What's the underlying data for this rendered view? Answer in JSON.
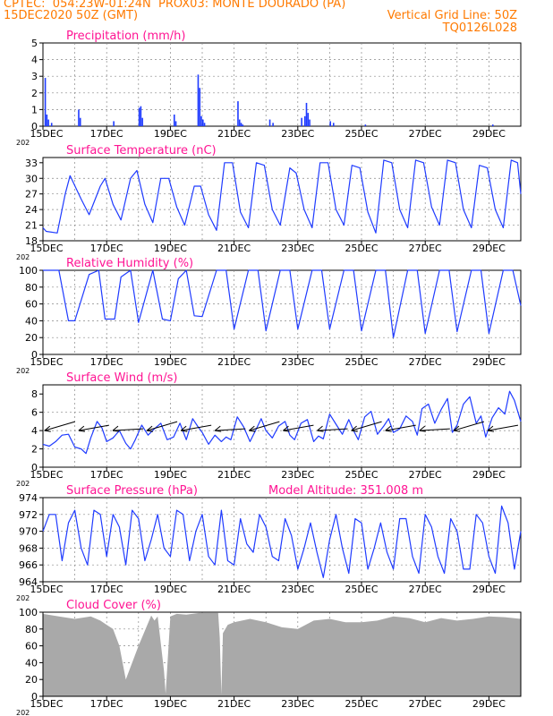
{
  "header": {
    "line1_left": "CPTEC:  054:23W-01:24N  PROX03: MONTE DOURADO (PA)",
    "line2_left": "15DEC2020 50Z (GMT)",
    "line2_right": "Vertical Grid Line: 50Z",
    "line3_right": "TQ0126L028"
  },
  "colors": {
    "header": "#ff7a00",
    "title": "#ff1493",
    "series": "#1f3bff",
    "bars": "#1f3bff",
    "cloud": "#a9a9a9",
    "arrows": "#000000"
  },
  "x_tick_labels": [
    "15DEC",
    "17DEC",
    "19DEC",
    "21DEC",
    "23DEC",
    "25DEC",
    "27DEC",
    "29DEC"
  ],
  "year_fragment": "202",
  "chart_data": [
    {
      "type": "bar",
      "title": "Precipitation (mm/h)",
      "ylim": [
        0,
        5
      ],
      "yticks": [
        "0",
        "1",
        "2",
        "3",
        "4",
        "5"
      ],
      "x_day_range": [
        0,
        15
      ],
      "events": [
        {
          "day": 0.05,
          "value": 2.9
        },
        {
          "day": 0.1,
          "value": 0.7
        },
        {
          "day": 0.15,
          "value": 0.4
        },
        {
          "day": 0.25,
          "value": 0.2
        },
        {
          "day": 1.1,
          "value": 1.0
        },
        {
          "day": 1.15,
          "value": 0.5
        },
        {
          "day": 2.2,
          "value": 0.3
        },
        {
          "day": 3.0,
          "value": 1.1
        },
        {
          "day": 3.05,
          "value": 1.2
        },
        {
          "day": 3.1,
          "value": 0.5
        },
        {
          "day": 4.1,
          "value": 0.7
        },
        {
          "day": 4.15,
          "value": 0.3
        },
        {
          "day": 4.85,
          "value": 3.1
        },
        {
          "day": 4.9,
          "value": 2.3
        },
        {
          "day": 4.95,
          "value": 0.6
        },
        {
          "day": 5.0,
          "value": 0.4
        },
        {
          "day": 5.05,
          "value": 0.2
        },
        {
          "day": 6.1,
          "value": 1.5
        },
        {
          "day": 6.15,
          "value": 0.4
        },
        {
          "day": 6.2,
          "value": 0.2
        },
        {
          "day": 6.25,
          "value": 0.1
        },
        {
          "day": 7.1,
          "value": 0.4
        },
        {
          "day": 7.2,
          "value": 0.2
        },
        {
          "day": 8.1,
          "value": 0.5
        },
        {
          "day": 8.2,
          "value": 0.6
        },
        {
          "day": 8.25,
          "value": 1.4
        },
        {
          "day": 8.3,
          "value": 0.8
        },
        {
          "day": 8.35,
          "value": 0.4
        },
        {
          "day": 9.0,
          "value": 0.3
        },
        {
          "day": 9.1,
          "value": 0.2
        },
        {
          "day": 10.1,
          "value": 0.1
        },
        {
          "day": 14.1,
          "value": 0.1
        }
      ]
    },
    {
      "type": "line",
      "title": "Surface Temperature (nC)",
      "ylim": [
        18,
        34
      ],
      "yticks": [
        "18",
        "21",
        "24",
        "27",
        "30",
        "33"
      ],
      "x_day_range": [
        0,
        15
      ],
      "x": [
        0,
        0.1,
        0.45,
        0.7,
        0.85,
        1.2,
        1.45,
        1.8,
        1.95,
        2.2,
        2.45,
        2.75,
        2.95,
        3.2,
        3.45,
        3.7,
        3.95,
        4.2,
        4.45,
        4.75,
        4.95,
        5.2,
        5.45,
        5.7,
        5.95,
        6.2,
        6.45,
        6.7,
        6.95,
        7.2,
        7.45,
        7.75,
        7.95,
        8.2,
        8.45,
        8.7,
        8.95,
        9.2,
        9.45,
        9.7,
        9.95,
        10.2,
        10.45,
        10.7,
        10.95,
        11.2,
        11.45,
        11.7,
        11.95,
        12.2,
        12.45,
        12.7,
        12.95,
        13.2,
        13.45,
        13.7,
        13.95,
        14.2,
        14.45,
        14.7,
        14.9,
        15.0
      ],
      "y": [
        20.5,
        19.8,
        19.5,
        27,
        30.5,
        26,
        23,
        28.5,
        30,
        25,
        22,
        30,
        31.5,
        25,
        21.5,
        30,
        30,
        24.5,
        21,
        28.5,
        28.5,
        23,
        20,
        33,
        33,
        23.5,
        20.5,
        33,
        32.5,
        24,
        21,
        32,
        31,
        24,
        20.5,
        33,
        33,
        24,
        21,
        32.5,
        32,
        23.5,
        19.5,
        33.5,
        33,
        24,
        20.5,
        33.5,
        33,
        24.5,
        21,
        33.5,
        33,
        24,
        20.5,
        32.5,
        32,
        24,
        20.5,
        33.5,
        33,
        27
      ]
    },
    {
      "type": "line",
      "title": "Relative Humidity (%)",
      "ylim": [
        0,
        100
      ],
      "yticks": [
        "0",
        "20",
        "40",
        "60",
        "80",
        "100"
      ],
      "x_day_range": [
        0,
        15
      ],
      "x": [
        0,
        0.05,
        0.5,
        0.8,
        1.0,
        1.45,
        1.75,
        1.95,
        2.25,
        2.45,
        2.75,
        3.0,
        3.45,
        3.75,
        4.0,
        4.25,
        4.5,
        4.75,
        5.0,
        5.45,
        5.75,
        6.0,
        6.45,
        6.75,
        7.0,
        7.45,
        7.75,
        8.0,
        8.45,
        8.75,
        9.0,
        9.45,
        9.75,
        10.0,
        10.45,
        10.75,
        11.0,
        11.45,
        11.75,
        12.0,
        12.45,
        12.75,
        13.0,
        13.45,
        13.75,
        14.0,
        14.45,
        14.75,
        15.0
      ],
      "y": [
        100,
        100,
        100,
        40,
        40,
        95,
        100,
        42,
        42,
        92,
        100,
        38,
        100,
        42,
        40,
        90,
        100,
        46,
        45,
        100,
        100,
        30,
        100,
        100,
        28,
        100,
        100,
        30,
        100,
        100,
        30,
        100,
        100,
        28,
        100,
        100,
        20,
        100,
        100,
        25,
        100,
        100,
        27,
        100,
        100,
        25,
        100,
        100,
        58
      ]
    },
    {
      "type": "line",
      "title": "Surface Wind (m/s)",
      "ylim": [
        0,
        9
      ],
      "yticks": [
        "0",
        "2",
        "4",
        "6",
        "8"
      ],
      "x_day_range": [
        0,
        15
      ],
      "x": [
        0,
        0.2,
        0.4,
        0.6,
        0.8,
        1.0,
        1.2,
        1.35,
        1.5,
        1.7,
        1.85,
        2.0,
        2.2,
        2.4,
        2.6,
        2.75,
        2.9,
        3.1,
        3.3,
        3.5,
        3.7,
        3.9,
        4.1,
        4.3,
        4.5,
        4.7,
        4.85,
        5.0,
        5.2,
        5.4,
        5.6,
        5.75,
        5.9,
        6.1,
        6.3,
        6.5,
        6.7,
        6.85,
        7.0,
        7.2,
        7.4,
        7.6,
        7.75,
        7.9,
        8.1,
        8.3,
        8.5,
        8.65,
        8.8,
        9.0,
        9.2,
        9.4,
        9.6,
        9.75,
        9.9,
        10.1,
        10.3,
        10.5,
        10.7,
        10.85,
        11.0,
        11.2,
        11.4,
        11.6,
        11.75,
        11.9,
        12.1,
        12.3,
        12.5,
        12.7,
        12.85,
        13.0,
        13.2,
        13.4,
        13.6,
        13.75,
        13.9,
        14.1,
        14.3,
        14.5,
        14.65,
        14.8,
        15.0
      ],
      "y": [
        2.5,
        2.3,
        2.8,
        3.5,
        3.6,
        2.2,
        2.0,
        1.5,
        3.2,
        5.0,
        4.3,
        2.8,
        3.2,
        4.0,
        2.6,
        2.0,
        3.0,
        4.6,
        3.5,
        4.2,
        4.8,
        3.0,
        3.3,
        4.8,
        3.0,
        5.3,
        4.5,
        3.8,
        2.5,
        3.5,
        2.8,
        3.3,
        3.0,
        5.5,
        4.4,
        2.8,
        4.2,
        5.3,
        4.0,
        3.2,
        4.5,
        5.0,
        3.5,
        3.0,
        4.8,
        5.2,
        2.8,
        3.4,
        3.1,
        5.8,
        4.7,
        3.6,
        5.2,
        4.0,
        3.0,
        5.5,
        6.1,
        3.6,
        4.5,
        5.3,
        3.8,
        4.2,
        5.6,
        5.0,
        3.5,
        6.4,
        6.9,
        4.8,
        6.3,
        7.5,
        3.8,
        4.6,
        6.9,
        7.7,
        4.8,
        5.6,
        3.3,
        5.4,
        6.5,
        5.8,
        8.3,
        7.3,
        5.0
      ]
    },
    {
      "type": "line",
      "title": "Surface Pressure (hPa)",
      "annotation": "Model Altitude: 351.008  m",
      "ylim": [
        964,
        974
      ],
      "yticks": [
        "964",
        "966",
        "968",
        "970",
        "972",
        "974"
      ],
      "x_day_range": [
        0,
        15
      ],
      "x": [
        0,
        0.2,
        0.4,
        0.6,
        0.8,
        1.0,
        1.2,
        1.4,
        1.6,
        1.8,
        2.0,
        2.2,
        2.4,
        2.6,
        2.8,
        3.0,
        3.2,
        3.4,
        3.6,
        3.8,
        4.0,
        4.2,
        4.4,
        4.6,
        4.8,
        5.0,
        5.2,
        5.4,
        5.6,
        5.8,
        6.0,
        6.2,
        6.4,
        6.6,
        6.8,
        7.0,
        7.2,
        7.4,
        7.6,
        7.8,
        8.0,
        8.2,
        8.4,
        8.6,
        8.8,
        9.0,
        9.2,
        9.4,
        9.6,
        9.8,
        10.0,
        10.2,
        10.4,
        10.6,
        10.8,
        11.0,
        11.2,
        11.4,
        11.6,
        11.8,
        12.0,
        12.2,
        12.4,
        12.6,
        12.8,
        13.0,
        13.2,
        13.4,
        13.6,
        13.8,
        14.0,
        14.2,
        14.4,
        14.6,
        14.8,
        15.0
      ],
      "y": [
        970,
        972,
        972,
        966.5,
        971,
        972.5,
        968,
        966,
        972.5,
        972,
        967,
        972,
        970.5,
        966,
        972.5,
        971.5,
        966.5,
        969,
        972,
        968,
        967,
        972.5,
        972,
        966.5,
        970,
        972,
        967,
        966,
        972.5,
        966.5,
        966,
        971.5,
        968.5,
        967.5,
        972,
        970.5,
        967,
        966.5,
        971.5,
        969.5,
        965.5,
        968,
        971,
        967.5,
        964.5,
        969,
        972,
        968,
        965,
        971.5,
        971,
        965.5,
        968,
        971,
        967.5,
        965.5,
        971.5,
        971.5,
        967,
        965,
        972,
        970.5,
        967,
        965,
        971.5,
        970,
        965.5,
        965.5,
        972,
        971,
        967,
        965,
        973,
        971,
        965.5,
        970
      ]
    },
    {
      "type": "area",
      "title": "Cloud Cover (%)",
      "ylim": [
        0,
        100
      ],
      "yticks": [
        "0",
        "20",
        "40",
        "60",
        "80",
        "100"
      ],
      "x_day_range": [
        0,
        15
      ],
      "x": [
        0,
        0.5,
        1.0,
        1.5,
        1.8,
        2.0,
        2.2,
        2.4,
        2.6,
        3.0,
        3.4,
        3.5,
        3.6,
        3.8,
        3.85,
        4.0,
        4.2,
        4.5,
        4.9,
        5.2,
        5.5,
        5.55,
        5.6,
        5.65,
        5.8,
        6.0,
        6.5,
        7.0,
        7.5,
        8.0,
        8.5,
        9.0,
        9.5,
        10.0,
        10.5,
        11.0,
        11.5,
        12.0,
        12.5,
        13.0,
        13.5,
        14.0,
        14.5,
        15.0
      ],
      "y": [
        98,
        95,
        92,
        95,
        90,
        85,
        80,
        60,
        20,
        60,
        96,
        90,
        95,
        30,
        3,
        95,
        98,
        97,
        99,
        99,
        99,
        70,
        2,
        75,
        85,
        88,
        92,
        88,
        82,
        80,
        90,
        92,
        88,
        88,
        90,
        95,
        93,
        88,
        93,
        90,
        92,
        95,
        94,
        92
      ]
    }
  ]
}
